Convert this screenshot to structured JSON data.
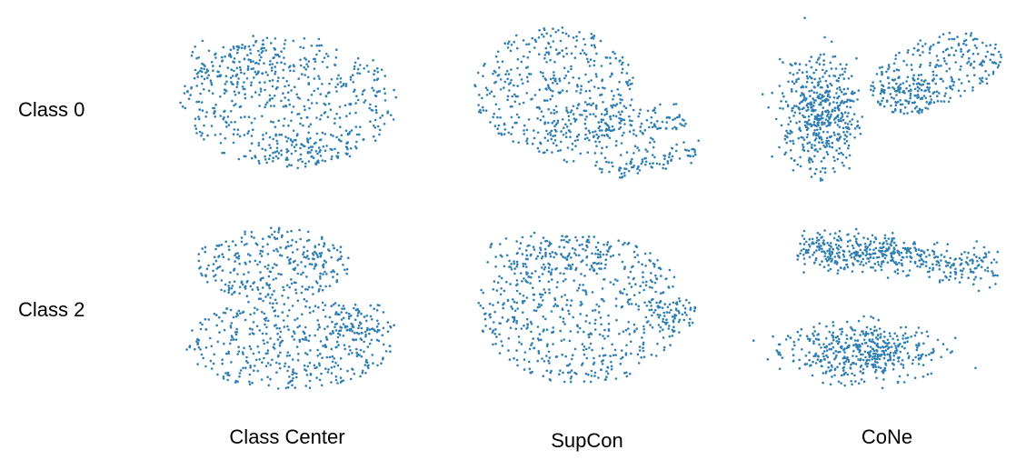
{
  "figure": {
    "row_labels": [
      "Class 0",
      "Class 2"
    ],
    "column_labels": [
      "Class Center",
      "SupCon",
      "CoNe"
    ],
    "point_color": "#2f7fb3"
  },
  "chart_data": [
    {
      "type": "scatter",
      "row": "Class 0",
      "column": "Class Center",
      "pattern": "single-broad-cluster",
      "point_count_estimate": 750
    },
    {
      "type": "scatter",
      "row": "Class 0",
      "column": "SupCon",
      "pattern": "broad-cluster-with-tail-right",
      "point_count_estimate": 700
    },
    {
      "type": "scatter",
      "row": "Class 0",
      "column": "CoNe",
      "pattern": "two-clusters-dense-left-diagonal-right",
      "point_count_estimate": 800
    },
    {
      "type": "scatter",
      "row": "Class 2",
      "column": "Class Center",
      "pattern": "two-stacked-clusters",
      "point_count_estimate": 750
    },
    {
      "type": "scatter",
      "row": "Class 2",
      "column": "SupCon",
      "pattern": "single-broad-cluster",
      "point_count_estimate": 700
    },
    {
      "type": "scatter",
      "row": "Class 2",
      "column": "CoNe",
      "pattern": "flat-band-top-dense-ellipse-bottom",
      "point_count_estimate": 800
    }
  ]
}
